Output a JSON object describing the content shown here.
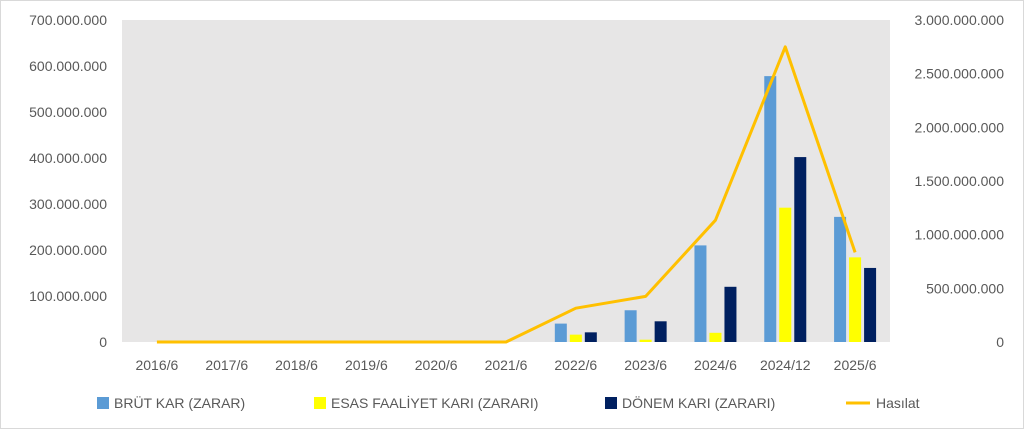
{
  "chart_data": {
    "type": "bar",
    "categories": [
      "2016/6",
      "2017/6",
      "2018/6",
      "2019/6",
      "2020/6",
      "2021/6",
      "2022/6",
      "2023/6",
      "2024/6",
      "2024/12",
      "2025/6"
    ],
    "series": [
      {
        "name": "BRÜT KAR (ZARAR)",
        "type": "bar",
        "axis": "left",
        "color": "#5b9bd5",
        "values": [
          0,
          0,
          0,
          0,
          0,
          0,
          40000000,
          69000000,
          210000000,
          578000000,
          272000000
        ]
      },
      {
        "name": "ESAS FAALİYET KARI (ZARARI)",
        "type": "bar",
        "axis": "left",
        "color": "#ffff00",
        "values": [
          0,
          0,
          0,
          0,
          0,
          0,
          16000000,
          5000000,
          20000000,
          292000000,
          184000000
        ]
      },
      {
        "name": "DÖNEM KARI (ZARARI)",
        "type": "bar",
        "axis": "left",
        "color": "#002060",
        "values": [
          0,
          0,
          0,
          0,
          0,
          0,
          21000000,
          45000000,
          120000000,
          402000000,
          161000000
        ]
      },
      {
        "name": "Hasılat",
        "type": "line",
        "axis": "right",
        "color": "#ffc000",
        "values": [
          0,
          0,
          0,
          0,
          0,
          0,
          315000000,
          425000000,
          1135000000,
          2750000000,
          835000000
        ]
      }
    ],
    "y_left": {
      "min": 0,
      "max": 700000000,
      "step": 100000000,
      "tick_labels": [
        "0",
        "100.000.000",
        "200.000.000",
        "300.000.000",
        "400.000.000",
        "500.000.000",
        "600.000.000",
        "700.000.000"
      ]
    },
    "y_right": {
      "min": 0,
      "max": 3000000000,
      "step": 500000000,
      "tick_labels": [
        "0",
        "500.000.000",
        "1.000.000.000",
        "1.500.000.000",
        "2.000.000.000",
        "2.500.000.000",
        "3.000.000.000"
      ]
    },
    "legend_position": "bottom",
    "grid": false,
    "plot_background": "#e7e6e6"
  }
}
